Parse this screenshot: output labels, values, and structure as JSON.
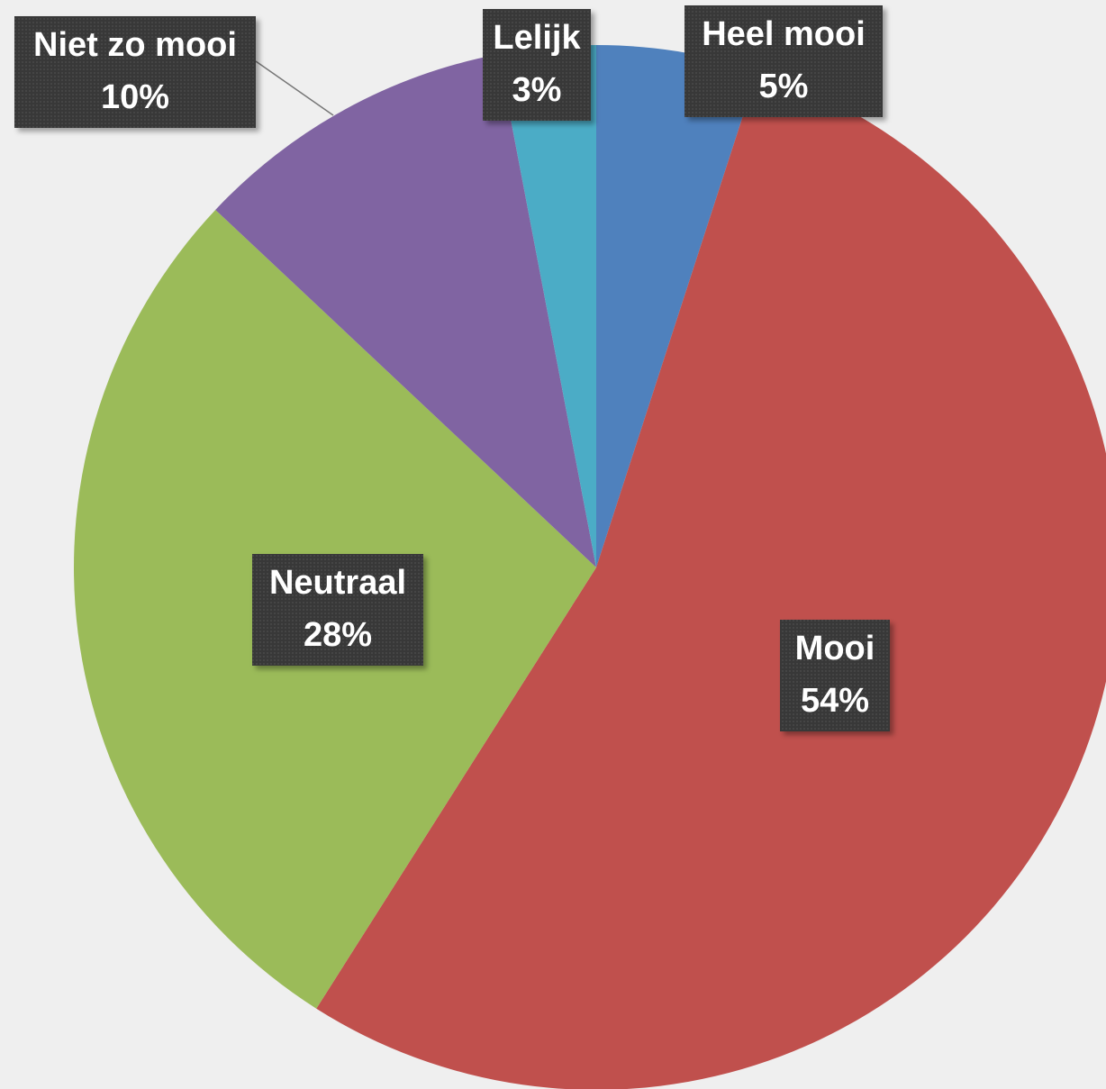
{
  "chart_data": {
    "type": "pie",
    "categories": [
      "Heel mooi",
      "Mooi",
      "Neutraal",
      "Niet zo mooi",
      "Lelijk"
    ],
    "values": [
      5,
      54,
      28,
      10,
      3
    ],
    "value_labels": [
      "5%",
      "54%",
      "28%",
      "10%",
      "3%"
    ],
    "colors": [
      "#4f81bd",
      "#c0504d",
      "#9bbb59",
      "#8064a2",
      "#4bacc6"
    ]
  }
}
